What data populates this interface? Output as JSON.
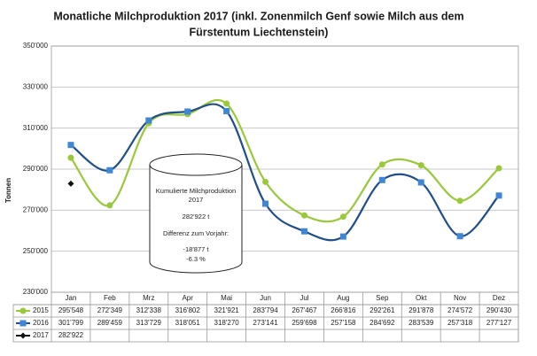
{
  "chart_data": {
    "type": "line",
    "title": [
      "Monatliche Milchproduktion 2017 (inkl. Zonenmilch Genf sowie Milch aus dem",
      "Fürstentum Liechtenstein)"
    ],
    "y_label": "Tonnen",
    "categories": [
      "Jan",
      "Feb",
      "Mrz",
      "Apr",
      "Mai",
      "Jun",
      "Jul",
      "Aug",
      "Sep",
      "Okt",
      "Nov",
      "Dez"
    ],
    "series": [
      {
        "name": "2015",
        "color": "#99c93a",
        "marker_color": "#99c93a",
        "marker": "circle",
        "values": [
          295548,
          272349,
          312338,
          316802,
          321921,
          283794,
          267467,
          266816,
          292261,
          291878,
          274572,
          290430
        ],
        "value_labels": [
          "295'548",
          "272'349",
          "312'338",
          "316'802",
          "321'921",
          "283'794",
          "267'467",
          "266'816",
          "292'261",
          "291'878",
          "274'572",
          "290'430"
        ]
      },
      {
        "name": "2016",
        "color": "#1f4e8c",
        "marker_color": "#3f86d6",
        "marker": "square",
        "values": [
          301799,
          289459,
          313729,
          318051,
          318270,
          273141,
          259698,
          257158,
          284692,
          283539,
          257318,
          277127
        ],
        "value_labels": [
          "301'799",
          "289'459",
          "313'729",
          "318'051",
          "318'270",
          "273'141",
          "259'698",
          "257'158",
          "284'692",
          "283'539",
          "257'318",
          "277'127"
        ]
      },
      {
        "name": "2017",
        "color": "#111111",
        "marker_color": "#111111",
        "marker": "diamond",
        "values": [
          282922,
          null,
          null,
          null,
          null,
          null,
          null,
          null,
          null,
          null,
          null,
          null
        ],
        "value_labels": [
          "282'922",
          null,
          null,
          null,
          null,
          null,
          null,
          null,
          null,
          null,
          null,
          null
        ]
      }
    ],
    "ylim": [
      230000,
      350000
    ],
    "yticks": [
      {
        "value": 230000,
        "label": "230'000"
      },
      {
        "value": 250000,
        "label": "250'000"
      },
      {
        "value": 270000,
        "label": "270'000"
      },
      {
        "value": 290000,
        "label": "290'000"
      },
      {
        "value": 310000,
        "label": "310'000"
      },
      {
        "value": 330000,
        "label": "330'000"
      },
      {
        "value": 350000,
        "label": "350'000"
      }
    ],
    "grid": true,
    "annotation": [
      "Kumulierte Milchproduktion",
      "2017",
      "282'922 t",
      "Differenz zum Vorjahr:",
      "-18'877 t",
      "-6.3 %"
    ]
  }
}
